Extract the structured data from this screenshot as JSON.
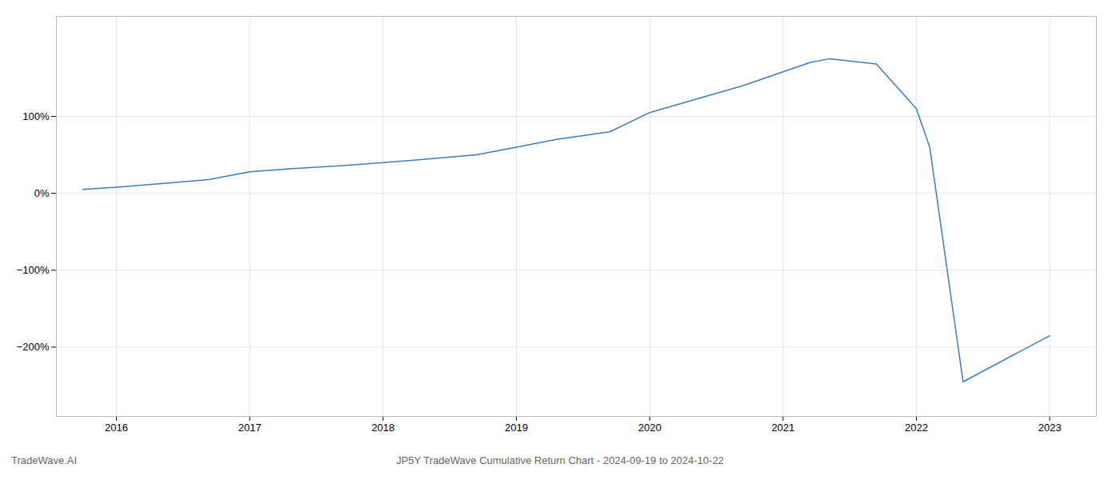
{
  "chart_data": {
    "type": "line",
    "title": "JP5Y TradeWave Cumulative Return Chart - 2024-09-19 to 2024-10-22",
    "annotations": [
      "TradeWave.AI"
    ],
    "x": [
      2015.75,
      2016.0,
      2016.3,
      2016.7,
      2017.0,
      2017.3,
      2017.7,
      2018.0,
      2018.3,
      2018.7,
      2019.0,
      2019.3,
      2019.7,
      2020.0,
      2020.3,
      2020.7,
      2021.0,
      2021.2,
      2021.35,
      2021.7,
      2022.0,
      2022.1,
      2022.35,
      2023.0
    ],
    "values": [
      5,
      8,
      12,
      18,
      28,
      32,
      36,
      40,
      44,
      50,
      60,
      70,
      80,
      105,
      120,
      140,
      158,
      170,
      175,
      168,
      110,
      60,
      -245,
      -185
    ],
    "color": "#3a7ebf",
    "xlim": [
      2015.55,
      2023.35
    ],
    "xticks": [
      2016,
      2017,
      2018,
      2019,
      2020,
      2021,
      2022,
      2023
    ],
    "ylim": [
      -290,
      230
    ],
    "yticks": [
      {
        "value": -200,
        "label": "−200%"
      },
      {
        "value": -100,
        "label": "−100%"
      },
      {
        "value": 0,
        "label": "0%"
      },
      {
        "value": 100,
        "label": "100%"
      }
    ],
    "grid": true
  }
}
